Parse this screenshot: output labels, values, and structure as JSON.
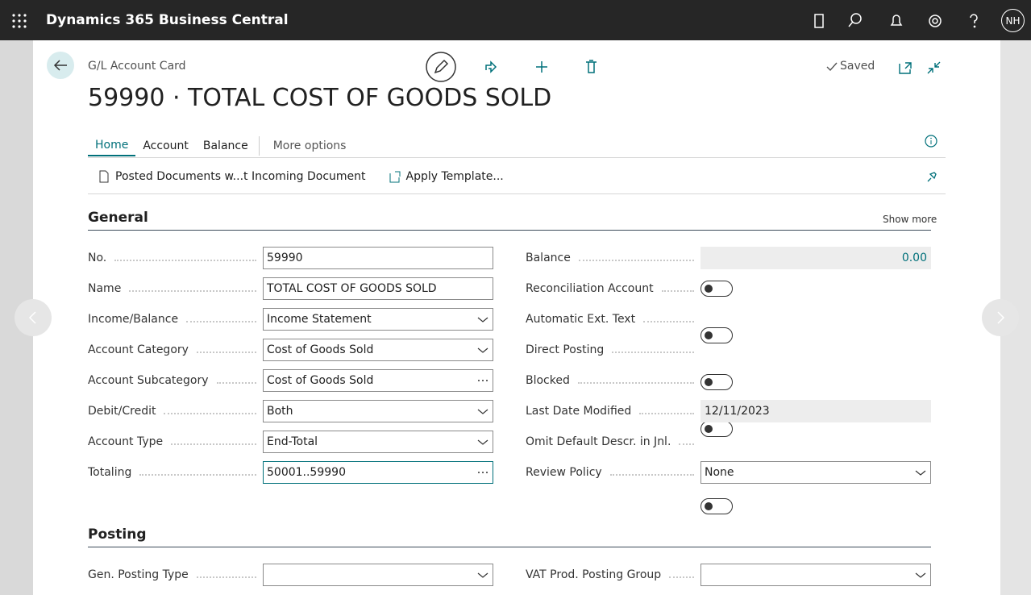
{
  "app_bar": {
    "title": "Dynamics 365 Business Central",
    "avatar": "NH"
  },
  "card": {
    "caption": "G/L Account Card",
    "status": "Saved",
    "title": "59990 · TOTAL COST OF GOODS SOLD",
    "tabs": [
      "Home",
      "Account",
      "Balance",
      "More options"
    ],
    "actions": [
      "Posted Documents w...t Incoming Document",
      "Apply Template..."
    ],
    "sections": [
      {
        "title": "General",
        "show_more": "Show more",
        "left": [
          {
            "label": "No.",
            "value": "59990",
            "kind": "text"
          },
          {
            "label": "Name",
            "value": "TOTAL COST OF GOODS SOLD",
            "kind": "text"
          },
          {
            "label": "Income/Balance",
            "value": "Income Statement",
            "kind": "select"
          },
          {
            "label": "Account Category",
            "value": "Cost of Goods Sold",
            "kind": "select"
          },
          {
            "label": "Account Subcategory",
            "value": "Cost of Goods Sold",
            "kind": "lookup"
          },
          {
            "label": "Debit/Credit",
            "value": "Both",
            "kind": "select"
          },
          {
            "label": "Account Type",
            "value": "End-Total",
            "kind": "select"
          },
          {
            "label": "Totaling",
            "value": "50001..59990",
            "kind": "lookup-focused"
          }
        ],
        "right": [
          {
            "label": "Balance",
            "value": "0.00",
            "kind": "readonly-amount"
          },
          {
            "label": "Reconciliation Account",
            "kind": "toggle"
          },
          {
            "label": "Automatic Ext. Text",
            "kind": "toggle"
          },
          {
            "label": "Direct Posting",
            "kind": "toggle"
          },
          {
            "label": "Blocked",
            "kind": "toggle"
          },
          {
            "label": "Last Date Modified",
            "value": "12/11/2023",
            "kind": "readonly"
          },
          {
            "label": "Omit Default Descr. in Jnl.",
            "kind": "toggle"
          },
          {
            "label": "Review Policy",
            "value": "None",
            "kind": "select"
          }
        ]
      },
      {
        "title": "Posting",
        "left": [
          {
            "label": "Gen. Posting Type",
            "kind": "select"
          }
        ],
        "right": [
          {
            "label": "VAT Prod. Posting Group",
            "kind": "select"
          }
        ]
      }
    ]
  }
}
